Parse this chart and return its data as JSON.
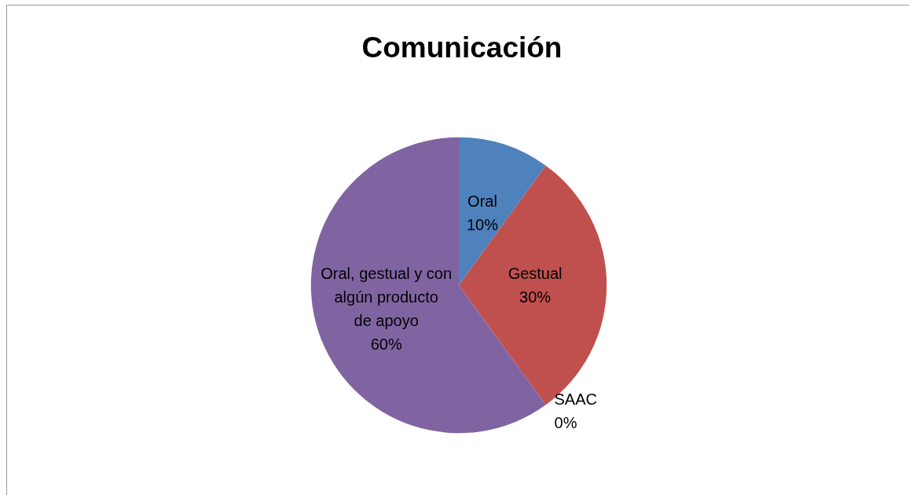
{
  "chart_data": {
    "type": "pie",
    "title": "Comunicación",
    "categories": [
      "Oral",
      "Gestual",
      "SAAC",
      "Oral, gestual y con algún producto de apoyo"
    ],
    "values": [
      10,
      30,
      0,
      60
    ],
    "colors": [
      "#4f81bd",
      "#c0504d",
      "#9bbb59",
      "#8064a2"
    ],
    "value_labels": [
      "10%",
      "30%",
      "0%",
      "60%"
    ],
    "legend": false
  }
}
